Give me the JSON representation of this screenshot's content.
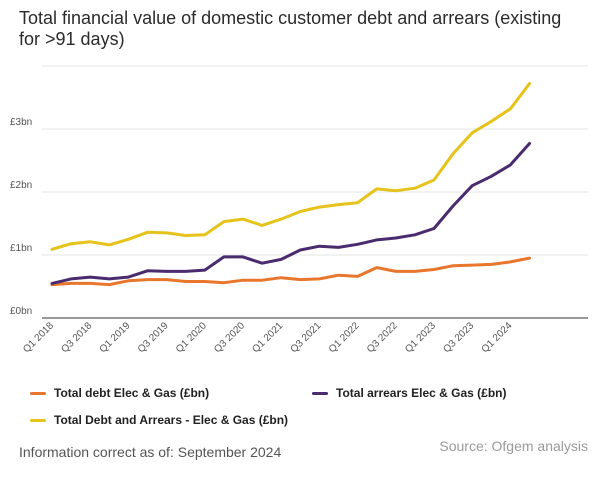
{
  "header": {
    "title": "Total financial value of domestic customer debt and arrears (existing for >91 days)"
  },
  "chart_data": {
    "type": "line",
    "title": "Total financial value of domestic customer debt and arrears (existing for >91 days)",
    "xlabel": "",
    "ylabel": "",
    "ylim": [
      0,
      4
    ],
    "y_ticks": [
      0,
      1,
      2,
      3
    ],
    "y_tick_labels": [
      "£0bn",
      "£1bn",
      "£2bn",
      "£3bn"
    ],
    "x": [
      "Q1 2018",
      "Q2 2018",
      "Q3 2018",
      "Q4 2018",
      "Q1 2019",
      "Q2 2019",
      "Q3 2019",
      "Q4 2019",
      "Q1 2020",
      "Q2 2020",
      "Q3 2020",
      "Q4 2020",
      "Q1 2021",
      "Q2 2021",
      "Q3 2021",
      "Q4 2021",
      "Q1 2022",
      "Q2 2022",
      "Q3 2022",
      "Q4 2022",
      "Q1 2023",
      "Q2 2023",
      "Q3 2023",
      "Q4 2023",
      "Q1 2024",
      "Q2 2024"
    ],
    "x_tick_labels": [
      "Q1 2018",
      "Q3 2018",
      "Q1 2019",
      "Q3 2019",
      "Q1 2020",
      "Q3 2020",
      "Q1 2021",
      "Q3 2021",
      "Q1 2022",
      "Q3 2022",
      "Q1 2023",
      "Q3 2023",
      "Q1 2024"
    ],
    "series": [
      {
        "name": "Total debt Elec & Gas (£bn)",
        "color": "#e8762d",
        "values": [
          0.53,
          0.55,
          0.55,
          0.53,
          0.59,
          0.61,
          0.61,
          0.58,
          0.58,
          0.56,
          0.6,
          0.6,
          0.64,
          0.61,
          0.62,
          0.68,
          0.66,
          0.8,
          0.74,
          0.74,
          0.77,
          0.83,
          0.84,
          0.85,
          0.89,
          0.95
        ]
      },
      {
        "name": "Total arrears Elec & Gas (£bn)",
        "color": "#4a2b6e",
        "values": [
          0.55,
          0.62,
          0.65,
          0.62,
          0.65,
          0.75,
          0.74,
          0.74,
          0.76,
          0.97,
          0.97,
          0.87,
          0.93,
          1.08,
          1.14,
          1.12,
          1.17,
          1.24,
          1.27,
          1.32,
          1.42,
          1.78,
          2.1,
          2.25,
          2.43,
          2.77
        ]
      },
      {
        "name": "Total Debt and Arrears - Elec & Gas (£bn)",
        "color": "#e5c31b",
        "values": [
          1.09,
          1.18,
          1.21,
          1.16,
          1.25,
          1.36,
          1.35,
          1.31,
          1.32,
          1.53,
          1.57,
          1.47,
          1.57,
          1.69,
          1.76,
          1.8,
          1.83,
          2.05,
          2.02,
          2.06,
          2.19,
          2.61,
          2.94,
          3.12,
          3.32,
          3.72
        ]
      }
    ],
    "legend_position": "bottom"
  },
  "footer": {
    "note": "Information correct as of: September 2024",
    "source": "Source: Ofgem analysis"
  }
}
